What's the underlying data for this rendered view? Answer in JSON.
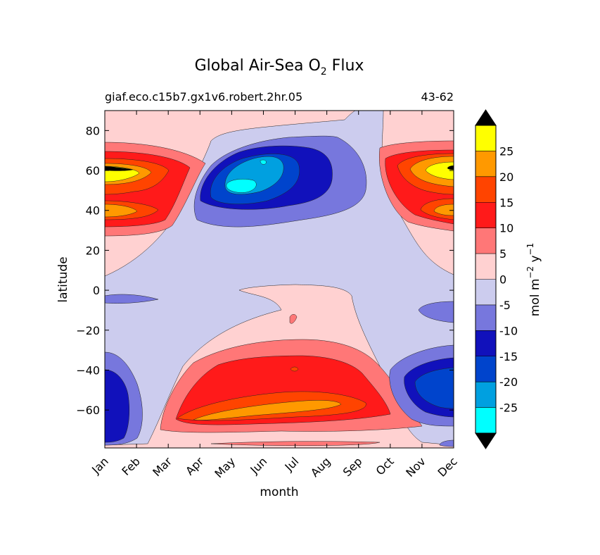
{
  "chart_data": {
    "type": "contour",
    "title": "Global Air-Sea O",
    "title_subscript": "2",
    "title_suffix": " Flux",
    "subtitle_left": "giaf.eco.c15b7.gx1v6.robert.2hr.05",
    "subtitle_right": "43-62",
    "xlabel": "month",
    "ylabel": "latitude",
    "x_categories": [
      "Jan",
      "Feb",
      "Mar",
      "Apr",
      "May",
      "Jun",
      "Jul",
      "Aug",
      "Sep",
      "Oct",
      "Nov",
      "Dec"
    ],
    "yticks": [
      80,
      60,
      40,
      20,
      0,
      -20,
      -40,
      -60
    ],
    "ylim": [
      -79,
      90
    ],
    "colorbar": {
      "label_main": "mol m",
      "label_exp1": "−2",
      "label_mid": " y",
      "label_exp2": "−1",
      "levels": [
        25,
        20,
        15,
        10,
        5,
        0,
        -5,
        -10,
        -15,
        -20,
        -25
      ],
      "colors": [
        "#ffff00",
        "#ff9900",
        "#ff4400",
        "#ff1a1a",
        "#ff7777",
        "#ffd1d1",
        "#ccccee",
        "#7777dd",
        "#1111bb",
        "#0044cc",
        "#00a0e0",
        "#00ffff"
      ],
      "extend_colors": [
        "#000000",
        "#000000"
      ]
    },
    "contour_levels": [
      -25,
      -20,
      -15,
      -10,
      -5,
      0,
      5,
      10,
      15,
      20,
      25
    ],
    "features": [
      {
        "region": "northern high latitudes, Jan-Mar and Oct-Dec",
        "latitude_range": [
          30,
          70
        ],
        "value_range": [
          5,
          30
        ]
      },
      {
        "region": "northern high latitudes, Apr-Aug",
        "latitude_range": [
          30,
          75
        ],
        "value_range": [
          -25,
          -5
        ]
      },
      {
        "region": "southern mid latitudes, Apr-Sep",
        "latitude_range": [
          -75,
          -25
        ],
        "value_range": [
          5,
          20
        ]
      },
      {
        "region": "southern high latitudes, Jan-Feb and Oct-Dec",
        "latitude_range": [
          -75,
          -30
        ],
        "value_range": [
          -20,
          -5
        ]
      },
      {
        "region": "equatorial band",
        "latitude_range": [
          -5,
          5
        ],
        "value_range": [
          -5,
          0
        ]
      }
    ]
  }
}
